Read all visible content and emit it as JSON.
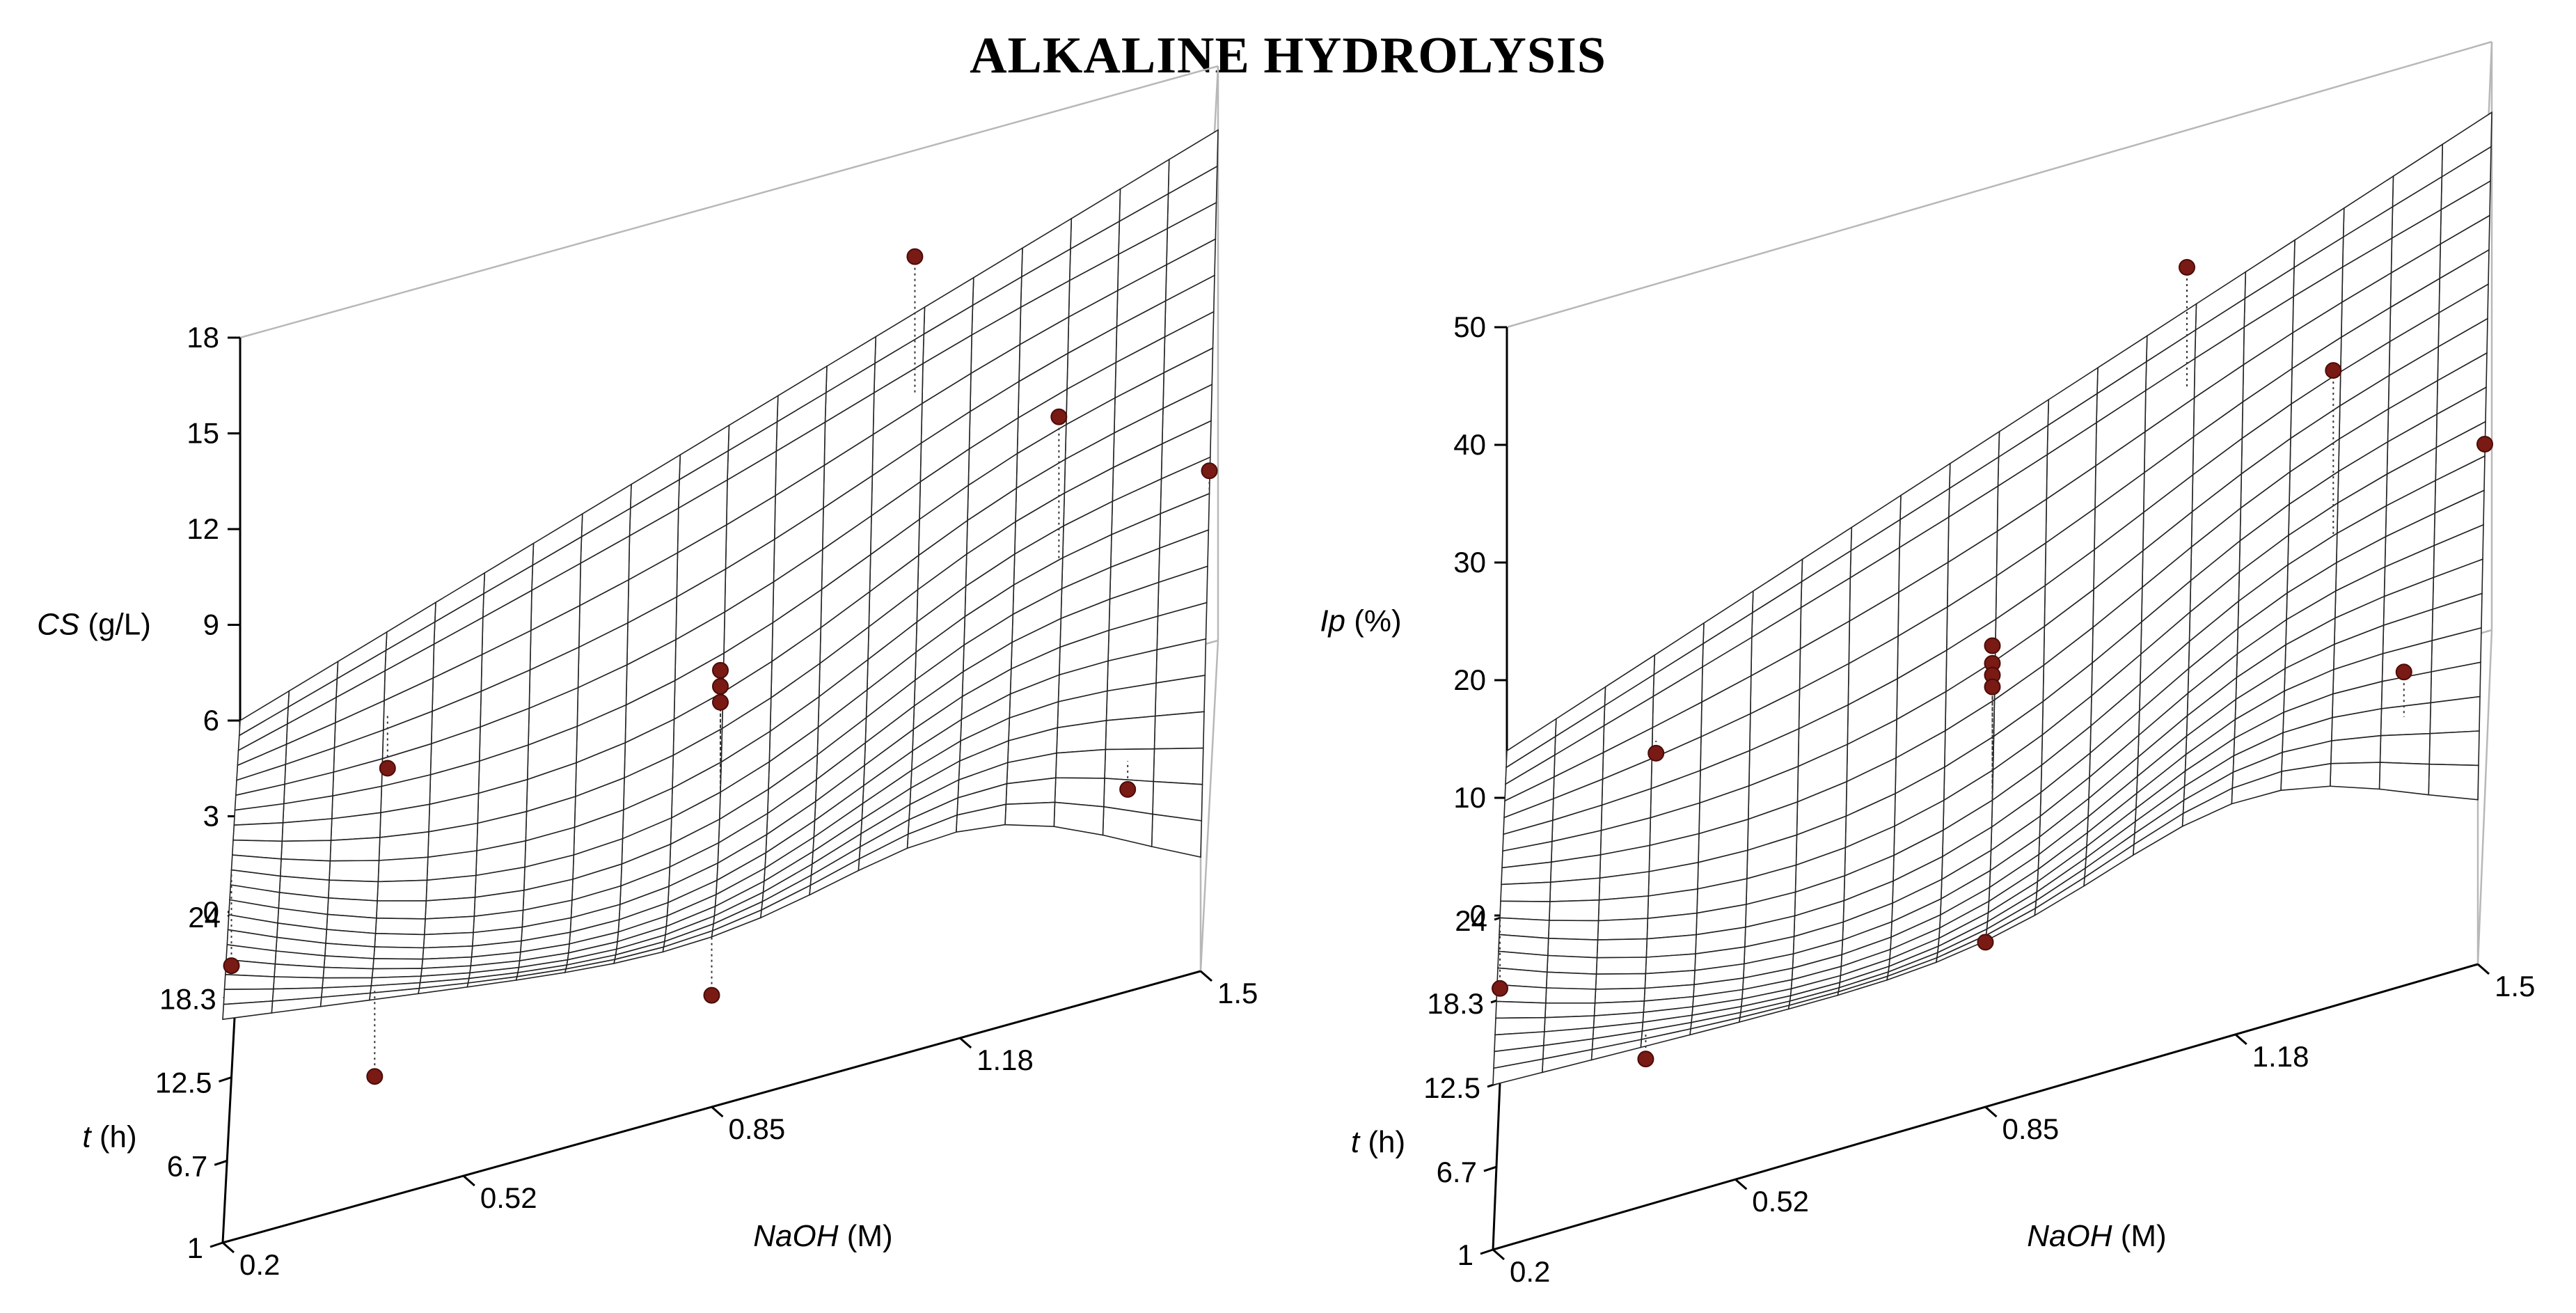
{
  "title": "ALKALINE HYDROLYSIS",
  "chart_data": [
    {
      "type": "surface",
      "zlabel": {
        "italic": "CS",
        "rest": " (g/L)"
      },
      "xlabel": {
        "italic": "NaOH",
        "rest": " (M)"
      },
      "ylabel": {
        "italic": "t",
        "rest": " (h)"
      },
      "z_ticks": [
        "0",
        "3",
        "6",
        "9",
        "12",
        "15",
        "18"
      ],
      "z_values": [
        0,
        3,
        6,
        9,
        12,
        15,
        18
      ],
      "zlim": [
        0,
        18
      ],
      "x_ticks": [
        "0.2",
        "0.52",
        "0.85",
        "1.18",
        "1.5"
      ],
      "x_values": [
        0.2,
        0.52,
        0.85,
        1.18,
        1.5
      ],
      "xlim": [
        0.2,
        1.5
      ],
      "y_ticks": [
        "1",
        "6.7",
        "12.5",
        "18.3",
        "24"
      ],
      "y_values": [
        1,
        6.7,
        12.5,
        18.3,
        24
      ],
      "ylim": [
        1,
        24
      ],
      "surface_corners": {
        "low_naoh_low_t": 7.0,
        "low_naoh_high_t": 6.0,
        "high_naoh_high_t": 16.0,
        "high_naoh_low_t": 2.5
      },
      "points": [
        {
          "naoh": 0.4,
          "t": 20.0,
          "cs": 5.0
        },
        {
          "naoh": 0.2,
          "t": 12.5,
          "cs": 3.5
        },
        {
          "naoh": 1.1,
          "t": 21.0,
          "cs": 16.0
        },
        {
          "naoh": 1.3,
          "t": 12.5,
          "cs": 13.5
        },
        {
          "naoh": 0.85,
          "t": 12.5,
          "cs": 8.5
        },
        {
          "naoh": 0.85,
          "t": 12.5,
          "cs": 8.0
        },
        {
          "naoh": 0.85,
          "t": 12.5,
          "cs": 7.5
        },
        {
          "naoh": 0.4,
          "t": 3.0,
          "cs": 3.0
        },
        {
          "naoh": 1.5,
          "t": 12.5,
          "cs": 10.5
        },
        {
          "naoh": 1.4,
          "t": 4.0,
          "cs": 5.0
        },
        {
          "naoh": 0.85,
          "t": 1.0,
          "cs": 3.5
        }
      ]
    },
    {
      "type": "surface",
      "zlabel": {
        "italic": "Ip",
        "rest": " (%)"
      },
      "xlabel": {
        "italic": "NaOH",
        "rest": " (M)"
      },
      "ylabel": {
        "italic": "t",
        "rest": " (h)"
      },
      "z_ticks": [
        "0",
        "10",
        "20",
        "30",
        "40",
        "50"
      ],
      "z_values": [
        0,
        10,
        20,
        30,
        40,
        50
      ],
      "zlim": [
        0,
        50
      ],
      "x_ticks": [
        "0.2",
        "0.52",
        "0.85",
        "1.18",
        "1.5"
      ],
      "x_values": [
        0.2,
        0.52,
        0.85,
        1.18,
        1.5
      ],
      "xlim": [
        0.2,
        1.5
      ],
      "y_ticks": [
        "1",
        "6.7",
        "12.5",
        "18.3",
        "24"
      ],
      "y_values": [
        1,
        6.7,
        12.5,
        18.3,
        24
      ],
      "ylim": [
        1,
        24
      ],
      "surface_corners": {
        "low_naoh_low_t": 14.0,
        "low_naoh_high_t": 14.0,
        "high_naoh_high_t": 44.0,
        "high_naoh_low_t": 11.0
      },
      "points": [
        {
          "naoh": 0.4,
          "t": 20.0,
          "ip": 15.0
        },
        {
          "naoh": 0.2,
          "t": 12.5,
          "ip": 8.0
        },
        {
          "naoh": 1.1,
          "t": 21.0,
          "ip": 42.0
        },
        {
          "naoh": 1.3,
          "t": 12.5,
          "ip": 40.0
        },
        {
          "naoh": 0.85,
          "t": 12.5,
          "ip": 25.0
        },
        {
          "naoh": 0.85,
          "t": 12.5,
          "ip": 23.5
        },
        {
          "naoh": 0.85,
          "t": 12.5,
          "ip": 22.5
        },
        {
          "naoh": 0.85,
          "t": 12.5,
          "ip": 21.5
        },
        {
          "naoh": 0.4,
          "t": 3.0,
          "ip": 10.0
        },
        {
          "naoh": 1.5,
          "t": 12.5,
          "ip": 30.0
        },
        {
          "naoh": 1.4,
          "t": 4.0,
          "ip": 23.0
        },
        {
          "naoh": 0.85,
          "t": 1.0,
          "ip": 14.0
        }
      ]
    }
  ]
}
